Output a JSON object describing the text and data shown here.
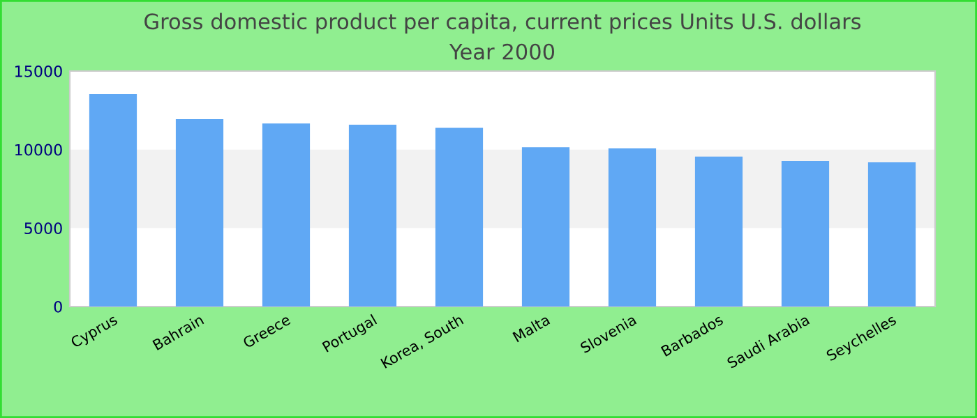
{
  "chart_data": {
    "type": "bar",
    "title": "Gross domestic product per capita, current prices Units U.S. dollars\nYear 2000",
    "categories": [
      "Cyprus",
      "Bahrain",
      "Greece",
      "Portugal",
      "Korea, South",
      "Malta",
      "Slovenia",
      "Barbados",
      "Saudi Arabia",
      "Seychelles"
    ],
    "values": [
      13530,
      11940,
      11660,
      11580,
      11380,
      10150,
      10070,
      9550,
      9270,
      9190
    ],
    "color": "#60a8f4",
    "ylim": [
      0,
      15000
    ],
    "yticks": [
      0,
      5000,
      10000,
      15000
    ],
    "bands": [
      {
        "axis": "y",
        "from": 5000,
        "to": 10000,
        "color": "#f2f2f2"
      }
    ]
  }
}
